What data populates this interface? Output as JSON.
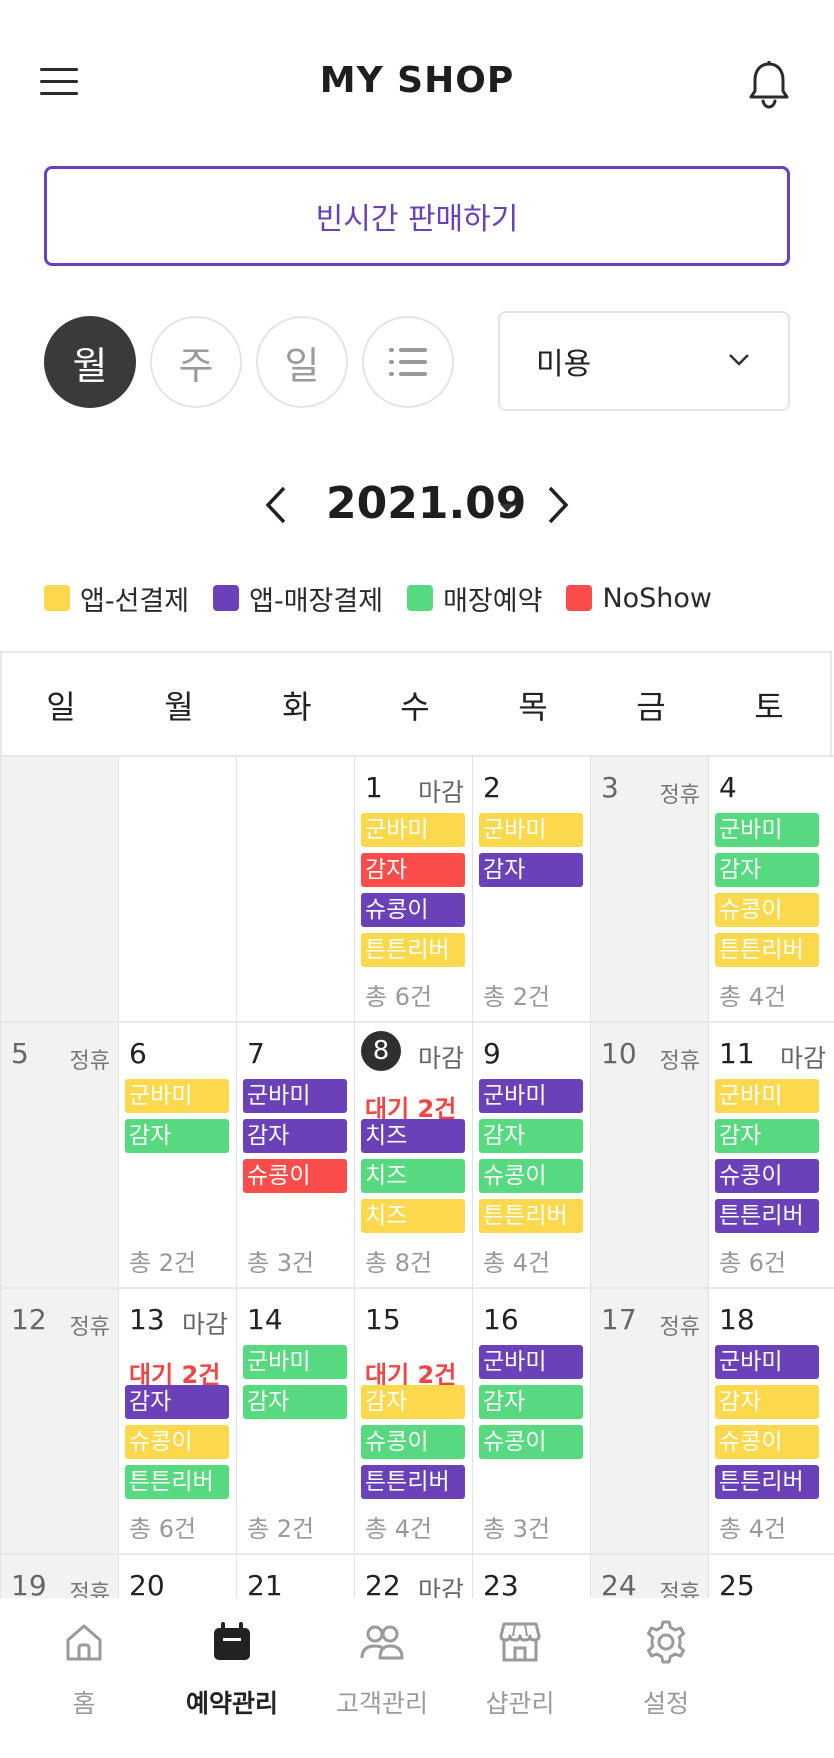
{
  "header": {
    "title": "MY SHOP"
  },
  "sell_button": {
    "label": "빈시간 판매하기"
  },
  "view_modes": [
    {
      "label": "월",
      "active": true
    },
    {
      "label": "주",
      "active": false
    },
    {
      "label": "일",
      "active": false
    }
  ],
  "category_select": {
    "value": "미용"
  },
  "month": {
    "label": "2021.09"
  },
  "legend": [
    {
      "label": "앱-선결제",
      "color": "#fcd94c"
    },
    {
      "label": "앱-매장결제",
      "color": "#6a41b8"
    },
    {
      "label": "매장예약",
      "color": "#57d97f"
    },
    {
      "label": "NoShow",
      "color": "#fb4c4c"
    }
  ],
  "colors": {
    "y": "#fcd94c",
    "p": "#6a41b8",
    "g": "#57d97f",
    "r": "#fb4c4c",
    "accent": "#6a41b8"
  },
  "weekdays": [
    "일",
    "월",
    "화",
    "수",
    "목",
    "금",
    "토"
  ],
  "weeks": [
    [
      {
        "empty": true,
        "off": true
      },
      {
        "empty": true
      },
      {
        "empty": true
      },
      {
        "day": "1",
        "tag": "마감",
        "bookings": [
          [
            "군바미",
            "y"
          ],
          [
            "감자",
            "r"
          ],
          [
            "슈콩이",
            "p"
          ],
          [
            "튼튼리버",
            "y"
          ]
        ],
        "total": "총 6건"
      },
      {
        "day": "2",
        "bookings": [
          [
            "군바미",
            "y"
          ],
          [
            "감자",
            "p"
          ]
        ],
        "total": "총 2건"
      },
      {
        "day": "3",
        "tag": "정휴",
        "off": true
      },
      {
        "day": "4",
        "bookings": [
          [
            "군바미",
            "g"
          ],
          [
            "감자",
            "g"
          ],
          [
            "슈콩이",
            "y"
          ],
          [
            "튼튼리버",
            "y"
          ]
        ],
        "total": "총 4건"
      }
    ],
    [
      {
        "day": "5",
        "tag": "정휴",
        "off": true
      },
      {
        "day": "6",
        "bookings": [
          [
            "군바미",
            "y"
          ],
          [
            "감자",
            "g"
          ]
        ],
        "total": "총 2건"
      },
      {
        "day": "7",
        "bookings": [
          [
            "군바미",
            "p"
          ],
          [
            "감자",
            "p"
          ],
          [
            "슈콩이",
            "r"
          ]
        ],
        "total": "총 3건"
      },
      {
        "day": "8",
        "tag": "마감",
        "today": true,
        "wait": "대기 2건",
        "bookings": [
          [
            "치즈",
            "p"
          ],
          [
            "치즈",
            "g"
          ],
          [
            "치즈",
            "y"
          ]
        ],
        "total": "총 8건"
      },
      {
        "day": "9",
        "bookings": [
          [
            "군바미",
            "p"
          ],
          [
            "감자",
            "g"
          ],
          [
            "슈콩이",
            "g"
          ],
          [
            "튼튼리버",
            "y"
          ]
        ],
        "total": "총 4건"
      },
      {
        "day": "10",
        "tag": "정휴",
        "off": true
      },
      {
        "day": "11",
        "tag": "마감",
        "bookings": [
          [
            "군바미",
            "y"
          ],
          [
            "감자",
            "g"
          ],
          [
            "슈콩이",
            "p"
          ],
          [
            "튼튼리버",
            "p"
          ]
        ],
        "total": "총 6건"
      }
    ],
    [
      {
        "day": "12",
        "tag": "정휴",
        "off": true
      },
      {
        "day": "13",
        "tag": "마감",
        "wait": "대기 2건",
        "bookings": [
          [
            "감자",
            "p"
          ],
          [
            "슈콩이",
            "y"
          ],
          [
            "튼튼리버",
            "g"
          ]
        ],
        "total": "총 6건"
      },
      {
        "day": "14",
        "bookings": [
          [
            "군바미",
            "g"
          ],
          [
            "감자",
            "g"
          ]
        ],
        "total": "총 2건"
      },
      {
        "day": "15",
        "wait": "대기 2건",
        "bookings": [
          [
            "감자",
            "y"
          ],
          [
            "슈콩이",
            "g"
          ],
          [
            "튼튼리버",
            "p"
          ]
        ],
        "total": "총 4건"
      },
      {
        "day": "16",
        "bookings": [
          [
            "군바미",
            "p"
          ],
          [
            "감자",
            "g"
          ],
          [
            "슈콩이",
            "g"
          ]
        ],
        "total": "총 3건"
      },
      {
        "day": "17",
        "tag": "정휴",
        "off": true
      },
      {
        "day": "18",
        "bookings": [
          [
            "군바미",
            "p"
          ],
          [
            "감자",
            "y"
          ],
          [
            "슈콩이",
            "y"
          ],
          [
            "튼튼리버",
            "p"
          ]
        ],
        "total": "총 4건"
      }
    ],
    [
      {
        "day": "19",
        "tag": "정휴",
        "off": true
      },
      {
        "day": "20"
      },
      {
        "day": "21"
      },
      {
        "day": "22",
        "tag": "마감"
      },
      {
        "day": "23"
      },
      {
        "day": "24",
        "tag": "정휴",
        "off": true
      },
      {
        "day": "25"
      }
    ]
  ],
  "tabs": [
    {
      "label": "홈",
      "icon": "home-icon",
      "active": false
    },
    {
      "label": "예약관리",
      "icon": "calendar-icon",
      "active": true
    },
    {
      "label": "고객관리",
      "icon": "people-icon",
      "active": false
    },
    {
      "label": "샵관리",
      "icon": "store-icon",
      "active": false
    },
    {
      "label": "설정",
      "icon": "gear-icon",
      "active": false
    }
  ]
}
